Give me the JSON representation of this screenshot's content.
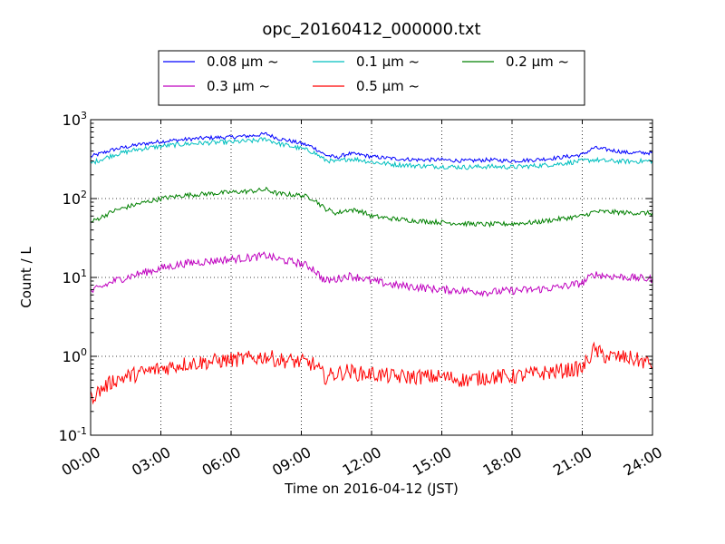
{
  "chart_data": {
    "type": "line",
    "title": "opc_20160412_000000.txt",
    "xlabel": "Time on 2016-04-12 (JST)",
    "ylabel": "Count / L",
    "xlim": [
      0,
      24
    ],
    "ylim": [
      0.1,
      1000
    ],
    "yscale": "log",
    "grid": true,
    "legend_position": "top",
    "x_ticks": [
      {
        "value": 0,
        "label": "00:00"
      },
      {
        "value": 3,
        "label": "03:00"
      },
      {
        "value": 6,
        "label": "06:00"
      },
      {
        "value": 9,
        "label": "09:00"
      },
      {
        "value": 12,
        "label": "12:00"
      },
      {
        "value": 15,
        "label": "15:00"
      },
      {
        "value": 18,
        "label": "18:00"
      },
      {
        "value": 21,
        "label": "21:00"
      },
      {
        "value": 24,
        "label": "24:00"
      }
    ],
    "y_ticks": [
      {
        "value": 0.1,
        "base": "10",
        "exp": "-1"
      },
      {
        "value": 1,
        "base": "10",
        "exp": "0"
      },
      {
        "value": 10,
        "base": "10",
        "exp": "1"
      },
      {
        "value": 100,
        "base": "10",
        "exp": "2"
      },
      {
        "value": 1000,
        "base": "10",
        "exp": "3"
      }
    ],
    "x": [
      0,
      1,
      2,
      3,
      4,
      5,
      6,
      7,
      7.5,
      8,
      9,
      9.5,
      10,
      10.5,
      11,
      11.5,
      12,
      13,
      14,
      15,
      16,
      17,
      18,
      19,
      20,
      21,
      21.5,
      22,
      23,
      24
    ],
    "series": [
      {
        "name": "0.08 μm ~",
        "color": "#0000ff",
        "values": [
          340,
          420,
          480,
          530,
          560,
          590,
          600,
          630,
          660,
          580,
          500,
          450,
          360,
          330,
          370,
          360,
          340,
          320,
          310,
          310,
          300,
          310,
          300,
          310,
          330,
          360,
          440,
          420,
          380,
          380
        ]
      },
      {
        "name": "0.1 μm ~",
        "color": "#00bfbf",
        "values": [
          280,
          360,
          420,
          460,
          490,
          510,
          520,
          540,
          570,
          500,
          430,
          390,
          310,
          290,
          320,
          310,
          290,
          270,
          260,
          255,
          250,
          255,
          250,
          260,
          275,
          300,
          310,
          300,
          295,
          300
        ]
      },
      {
        "name": "0.2 μm ~",
        "color": "#008000",
        "values": [
          50,
          70,
          85,
          100,
          110,
          115,
          120,
          125,
          130,
          115,
          110,
          100,
          75,
          65,
          72,
          70,
          60,
          55,
          52,
          50,
          48,
          47,
          48,
          50,
          55,
          60,
          68,
          68,
          66,
          65
        ]
      },
      {
        "name": "0.3 μm ~",
        "color": "#bf00bf",
        "values": [
          6.5,
          9,
          11,
          13,
          15,
          16,
          17,
          18,
          19,
          17,
          15,
          13,
          9,
          9.5,
          10.5,
          10,
          9,
          8,
          7.5,
          7,
          6.8,
          6.5,
          6.8,
          7,
          7.5,
          8.5,
          11,
          10.5,
          10,
          9.5
        ]
      },
      {
        "name": "0.5 μm ~",
        "color": "#ff0000",
        "values": [
          0.3,
          0.5,
          0.6,
          0.7,
          0.8,
          0.85,
          0.9,
          0.95,
          1.0,
          0.9,
          0.85,
          0.8,
          0.55,
          0.6,
          0.65,
          0.6,
          0.6,
          0.55,
          0.55,
          0.55,
          0.5,
          0.55,
          0.55,
          0.6,
          0.65,
          0.7,
          1.2,
          1.0,
          0.95,
          0.8
        ]
      }
    ]
  }
}
